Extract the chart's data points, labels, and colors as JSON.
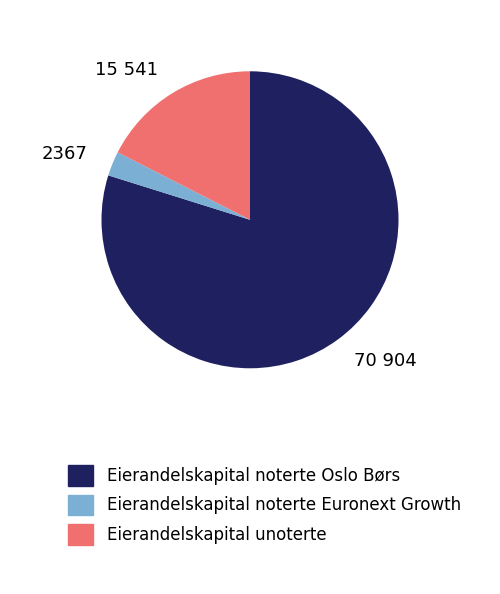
{
  "values": [
    70904,
    2367,
    15541
  ],
  "colors": [
    "#1e2060",
    "#7bafd4",
    "#f07070"
  ],
  "labels": [
    "70 904",
    "2367",
    "15 541"
  ],
  "label_positions_r": [
    1.18,
    1.18,
    1.18
  ],
  "legend_labels": [
    "Eierandelskapital noterte Oslo Børs",
    "Eierandelskapital noterte Euronext Growth",
    "Eierandelskapital unoterte"
  ],
  "legend_colors": [
    "#1e2060",
    "#7bafd4",
    "#f07070"
  ],
  "background_color": "#ffffff",
  "label_fontsize": 13,
  "legend_fontsize": 12
}
